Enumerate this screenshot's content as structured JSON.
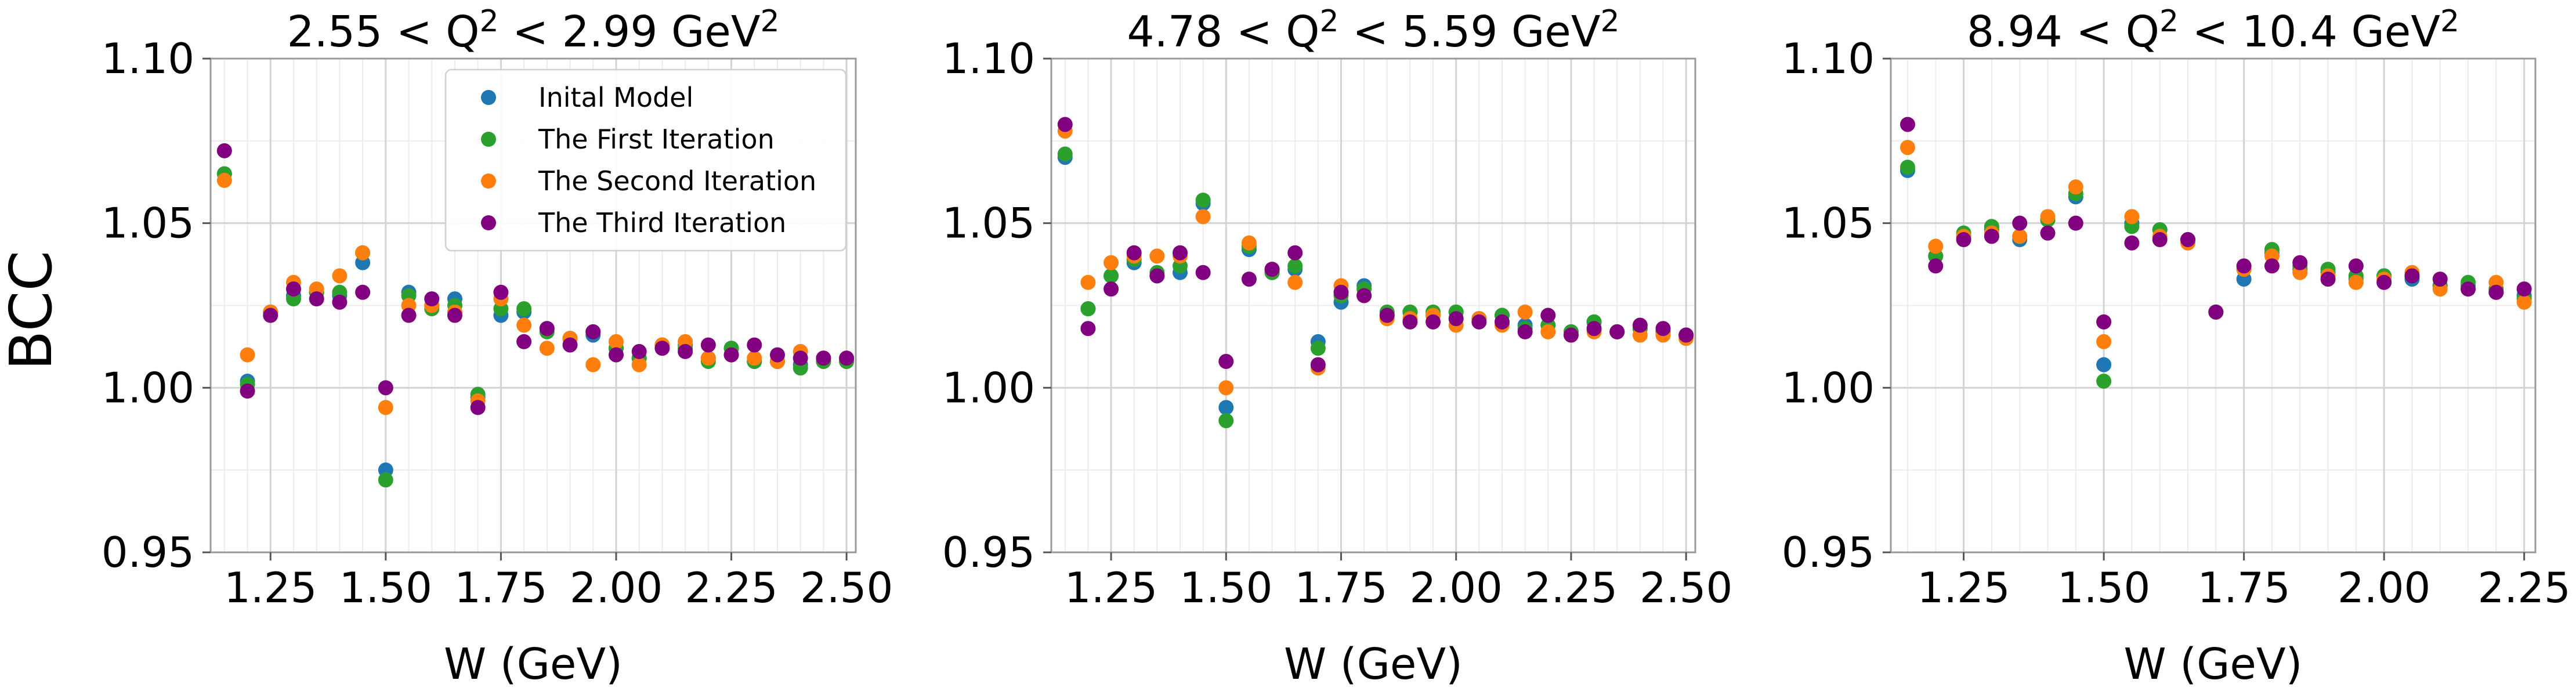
{
  "figure": {
    "ylabel": "BCC",
    "legend_panel": 0,
    "legend_location": "upper-right"
  },
  "series_meta": [
    {
      "name": "Inital Model",
      "color": "#1f77b4"
    },
    {
      "name": "The First Iteration",
      "color": "#2ca02c"
    },
    {
      "name": "The Second Iteration",
      "color": "#ff7f0e"
    },
    {
      "name": "The Third Iteration",
      "color": "#800080"
    }
  ],
  "chart_data": [
    {
      "type": "scatter",
      "title": "2.55 < Q² < 2.99 GeV²",
      "xlabel": "W (GeV)",
      "ylabel": "BCC",
      "xlim": [
        1.12,
        2.52
      ],
      "ylim": [
        0.95,
        1.1
      ],
      "xticks": [
        1.25,
        1.5,
        1.75,
        2.0,
        2.25,
        2.5
      ],
      "xtick_labels": [
        "1.25",
        "1.50",
        "1.75",
        "2.00",
        "2.25",
        "2.50"
      ],
      "yticks": [
        0.95,
        1.0,
        1.05,
        1.1
      ],
      "ytick_labels": [
        "0.95",
        "1.00",
        "1.05",
        "1.10"
      ],
      "grid": true,
      "x": [
        1.15,
        1.2,
        1.25,
        1.3,
        1.35,
        1.4,
        1.45,
        1.5,
        1.55,
        1.6,
        1.65,
        1.7,
        1.75,
        1.8,
        1.85,
        1.9,
        1.95,
        2.0,
        2.05,
        2.1,
        2.15,
        2.2,
        2.25,
        2.3,
        2.35,
        2.4,
        2.45,
        2.5
      ],
      "series": [
        {
          "name": "Inital Model",
          "values": [
            1.065,
            1.002,
            1.023,
            1.028,
            1.029,
            1.028,
            1.038,
            0.975,
            1.029,
            1.025,
            1.027,
            0.997,
            1.022,
            1.023,
            1.018,
            1.015,
            1.016,
            1.012,
            1.009,
            1.013,
            1.013,
            1.009,
            1.012,
            1.008,
            1.008,
            1.007,
            1.008,
            1.008
          ]
        },
        {
          "name": "The First Iteration",
          "values": [
            1.065,
            1.001,
            1.023,
            1.027,
            1.029,
            1.029,
            1.041,
            0.972,
            1.028,
            1.024,
            1.025,
            0.998,
            1.024,
            1.024,
            1.017,
            1.015,
            1.017,
            1.012,
            1.009,
            1.013,
            1.012,
            1.008,
            1.012,
            1.008,
            1.008,
            1.006,
            1.008,
            1.008
          ]
        },
        {
          "name": "The Second Iteration",
          "values": [
            1.063,
            1.01,
            1.023,
            1.032,
            1.03,
            1.034,
            1.041,
            0.994,
            1.025,
            1.025,
            1.023,
            0.996,
            1.027,
            1.019,
            1.012,
            1.015,
            1.007,
            1.014,
            1.007,
            1.013,
            1.014,
            1.009,
            1.01,
            1.009,
            1.008,
            1.011,
            1.009,
            1.009
          ]
        },
        {
          "name": "The Third Iteration",
          "values": [
            1.072,
            0.999,
            1.022,
            1.03,
            1.027,
            1.026,
            1.029,
            1.0,
            1.022,
            1.027,
            1.022,
            0.994,
            1.029,
            1.014,
            1.018,
            1.013,
            1.017,
            1.01,
            1.011,
            1.012,
            1.011,
            1.013,
            1.01,
            1.013,
            1.01,
            1.009,
            1.009,
            1.009
          ]
        }
      ]
    },
    {
      "type": "scatter",
      "title": "4.78 < Q² < 5.59 GeV²",
      "xlabel": "W (GeV)",
      "ylabel": "",
      "xlim": [
        1.12,
        2.52
      ],
      "ylim": [
        0.95,
        1.1
      ],
      "xticks": [
        1.25,
        1.5,
        1.75,
        2.0,
        2.25,
        2.5
      ],
      "xtick_labels": [
        "1.25",
        "1.50",
        "1.75",
        "2.00",
        "2.25",
        "2.50"
      ],
      "yticks": [
        0.95,
        1.0,
        1.05,
        1.1
      ],
      "ytick_labels": [
        "0.95",
        "1.00",
        "1.05",
        "1.10"
      ],
      "grid": true,
      "x": [
        1.15,
        1.2,
        1.25,
        1.3,
        1.35,
        1.4,
        1.45,
        1.5,
        1.55,
        1.6,
        1.65,
        1.7,
        1.75,
        1.8,
        1.85,
        1.9,
        1.95,
        2.0,
        2.05,
        2.1,
        2.15,
        2.2,
        2.25,
        2.3,
        2.35,
        2.4,
        2.45,
        2.5
      ],
      "series": [
        {
          "name": "Inital Model",
          "values": [
            1.07,
            1.024,
            1.034,
            1.038,
            1.034,
            1.035,
            1.056,
            0.994,
            1.042,
            1.035,
            1.036,
            1.014,
            1.026,
            1.031,
            1.022,
            1.023,
            1.022,
            1.023,
            1.021,
            1.022,
            1.019,
            1.019,
            1.017,
            1.02,
            1.017,
            1.018,
            1.017,
            1.016
          ]
        },
        {
          "name": "The First Iteration",
          "values": [
            1.071,
            1.024,
            1.034,
            1.039,
            1.035,
            1.037,
            1.057,
            0.99,
            1.043,
            1.035,
            1.037,
            1.012,
            1.028,
            1.03,
            1.023,
            1.023,
            1.023,
            1.023,
            1.021,
            1.022,
            1.018,
            1.019,
            1.017,
            1.02,
            1.017,
            1.018,
            1.017,
            1.016
          ]
        },
        {
          "name": "The Second Iteration",
          "values": [
            1.078,
            1.032,
            1.038,
            1.04,
            1.04,
            1.04,
            1.052,
            1.0,
            1.044,
            1.036,
            1.032,
            1.006,
            1.031,
            1.028,
            1.021,
            1.021,
            1.022,
            1.019,
            1.021,
            1.019,
            1.023,
            1.017,
            1.016,
            1.017,
            1.017,
            1.016,
            1.016,
            1.015
          ]
        },
        {
          "name": "The Third Iteration",
          "values": [
            1.08,
            1.018,
            1.03,
            1.041,
            1.034,
            1.041,
            1.035,
            1.008,
            1.033,
            1.036,
            1.041,
            1.007,
            1.029,
            1.028,
            1.022,
            1.02,
            1.02,
            1.021,
            1.02,
            1.02,
            1.017,
            1.022,
            1.016,
            1.018,
            1.017,
            1.019,
            1.018,
            1.016
          ]
        }
      ]
    },
    {
      "type": "scatter",
      "title": "8.94 < Q² < 10.4 GeV²",
      "xlabel": "W (GeV)",
      "ylabel": "",
      "xlim": [
        1.12,
        2.27
      ],
      "ylim": [
        0.95,
        1.1
      ],
      "xticks": [
        1.25,
        1.5,
        1.75,
        2.0,
        2.25
      ],
      "xtick_labels": [
        "1.25",
        "1.50",
        "1.75",
        "2.00",
        "2.25"
      ],
      "yticks": [
        0.95,
        1.0,
        1.05,
        1.1
      ],
      "ytick_labels": [
        "0.95",
        "1.00",
        "1.05",
        "1.10"
      ],
      "grid": true,
      "x": [
        1.15,
        1.2,
        1.25,
        1.3,
        1.35,
        1.4,
        1.45,
        1.5,
        1.55,
        1.6,
        1.65,
        1.7,
        1.75,
        1.8,
        1.85,
        1.9,
        1.95,
        2.0,
        2.05,
        2.1,
        2.15,
        2.2,
        2.25
      ],
      "series": [
        {
          "name": "Inital Model",
          "values": [
            1.066,
            1.04,
            1.046,
            1.048,
            1.045,
            1.051,
            1.058,
            1.007,
            1.05,
            1.048,
            1.045,
            1.023,
            1.033,
            1.041,
            1.036,
            1.035,
            1.033,
            1.034,
            1.033,
            1.031,
            1.031,
            1.029,
            1.028
          ]
        },
        {
          "name": "The First Iteration",
          "values": [
            1.067,
            1.04,
            1.047,
            1.049,
            1.046,
            1.051,
            1.059,
            1.002,
            1.049,
            1.048,
            1.045,
            1.023,
            1.036,
            1.042,
            1.037,
            1.036,
            1.034,
            1.034,
            1.034,
            1.031,
            1.032,
            1.03,
            1.027
          ]
        },
        {
          "name": "The Second Iteration",
          "values": [
            1.073,
            1.043,
            1.046,
            1.047,
            1.046,
            1.052,
            1.061,
            1.014,
            1.052,
            1.046,
            1.044,
            1.023,
            1.036,
            1.04,
            1.035,
            1.034,
            1.032,
            1.033,
            1.035,
            1.03,
            1.03,
            1.032,
            1.026
          ]
        },
        {
          "name": "The Third Iteration",
          "values": [
            1.08,
            1.037,
            1.045,
            1.046,
            1.05,
            1.047,
            1.05,
            1.02,
            1.044,
            1.045,
            1.045,
            1.023,
            1.037,
            1.037,
            1.038,
            1.033,
            1.037,
            1.032,
            1.034,
            1.033,
            1.03,
            1.029,
            1.03
          ]
        }
      ]
    }
  ]
}
